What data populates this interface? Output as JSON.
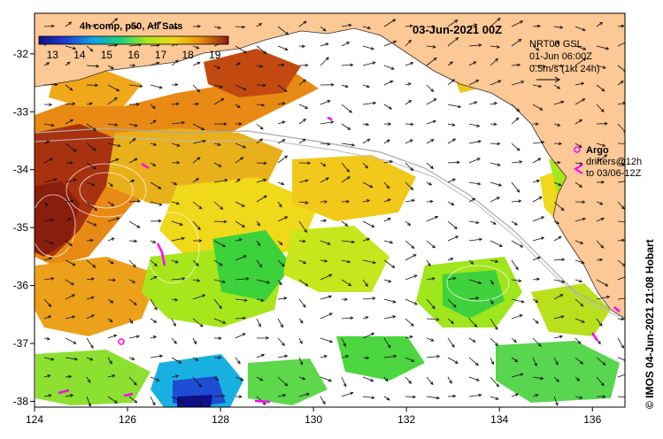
{
  "map": {
    "date_title": "03-Jun-2021 00Z",
    "credit": "© IMOS 04-Jun-2021 21:08 Hobart",
    "colorbar": {
      "title": "4h comp, p50, All Sats",
      "ticks": [
        "13",
        "14",
        "15",
        "16",
        "17",
        "18",
        "19"
      ],
      "min": 12.5,
      "max": 19.5
    },
    "lat_ticks": [
      "-32",
      "-33",
      "-34",
      "-35",
      "-36",
      "-37",
      "-38"
    ],
    "lon_ticks": [
      "124",
      "126",
      "128",
      "130",
      "132",
      "134",
      "136"
    ],
    "lon_range": [
      124,
      136.7
    ],
    "lat_range": [
      -38.1,
      -31.3
    ],
    "current_legend": {
      "line1": "NRT00 GSL",
      "line2": "01-Jun 06:00Z",
      "line3": "0.5m/s (1kt 24h)"
    },
    "argo_legend": {
      "label": "Argo",
      "line1": "drifters@12h",
      "line2": "to 03/06-12Z"
    },
    "colors": {
      "land": "#fcc895",
      "no_data": "#ffffff",
      "argo": "#ff00ff",
      "contour": "#aaaaaa"
    }
  }
}
